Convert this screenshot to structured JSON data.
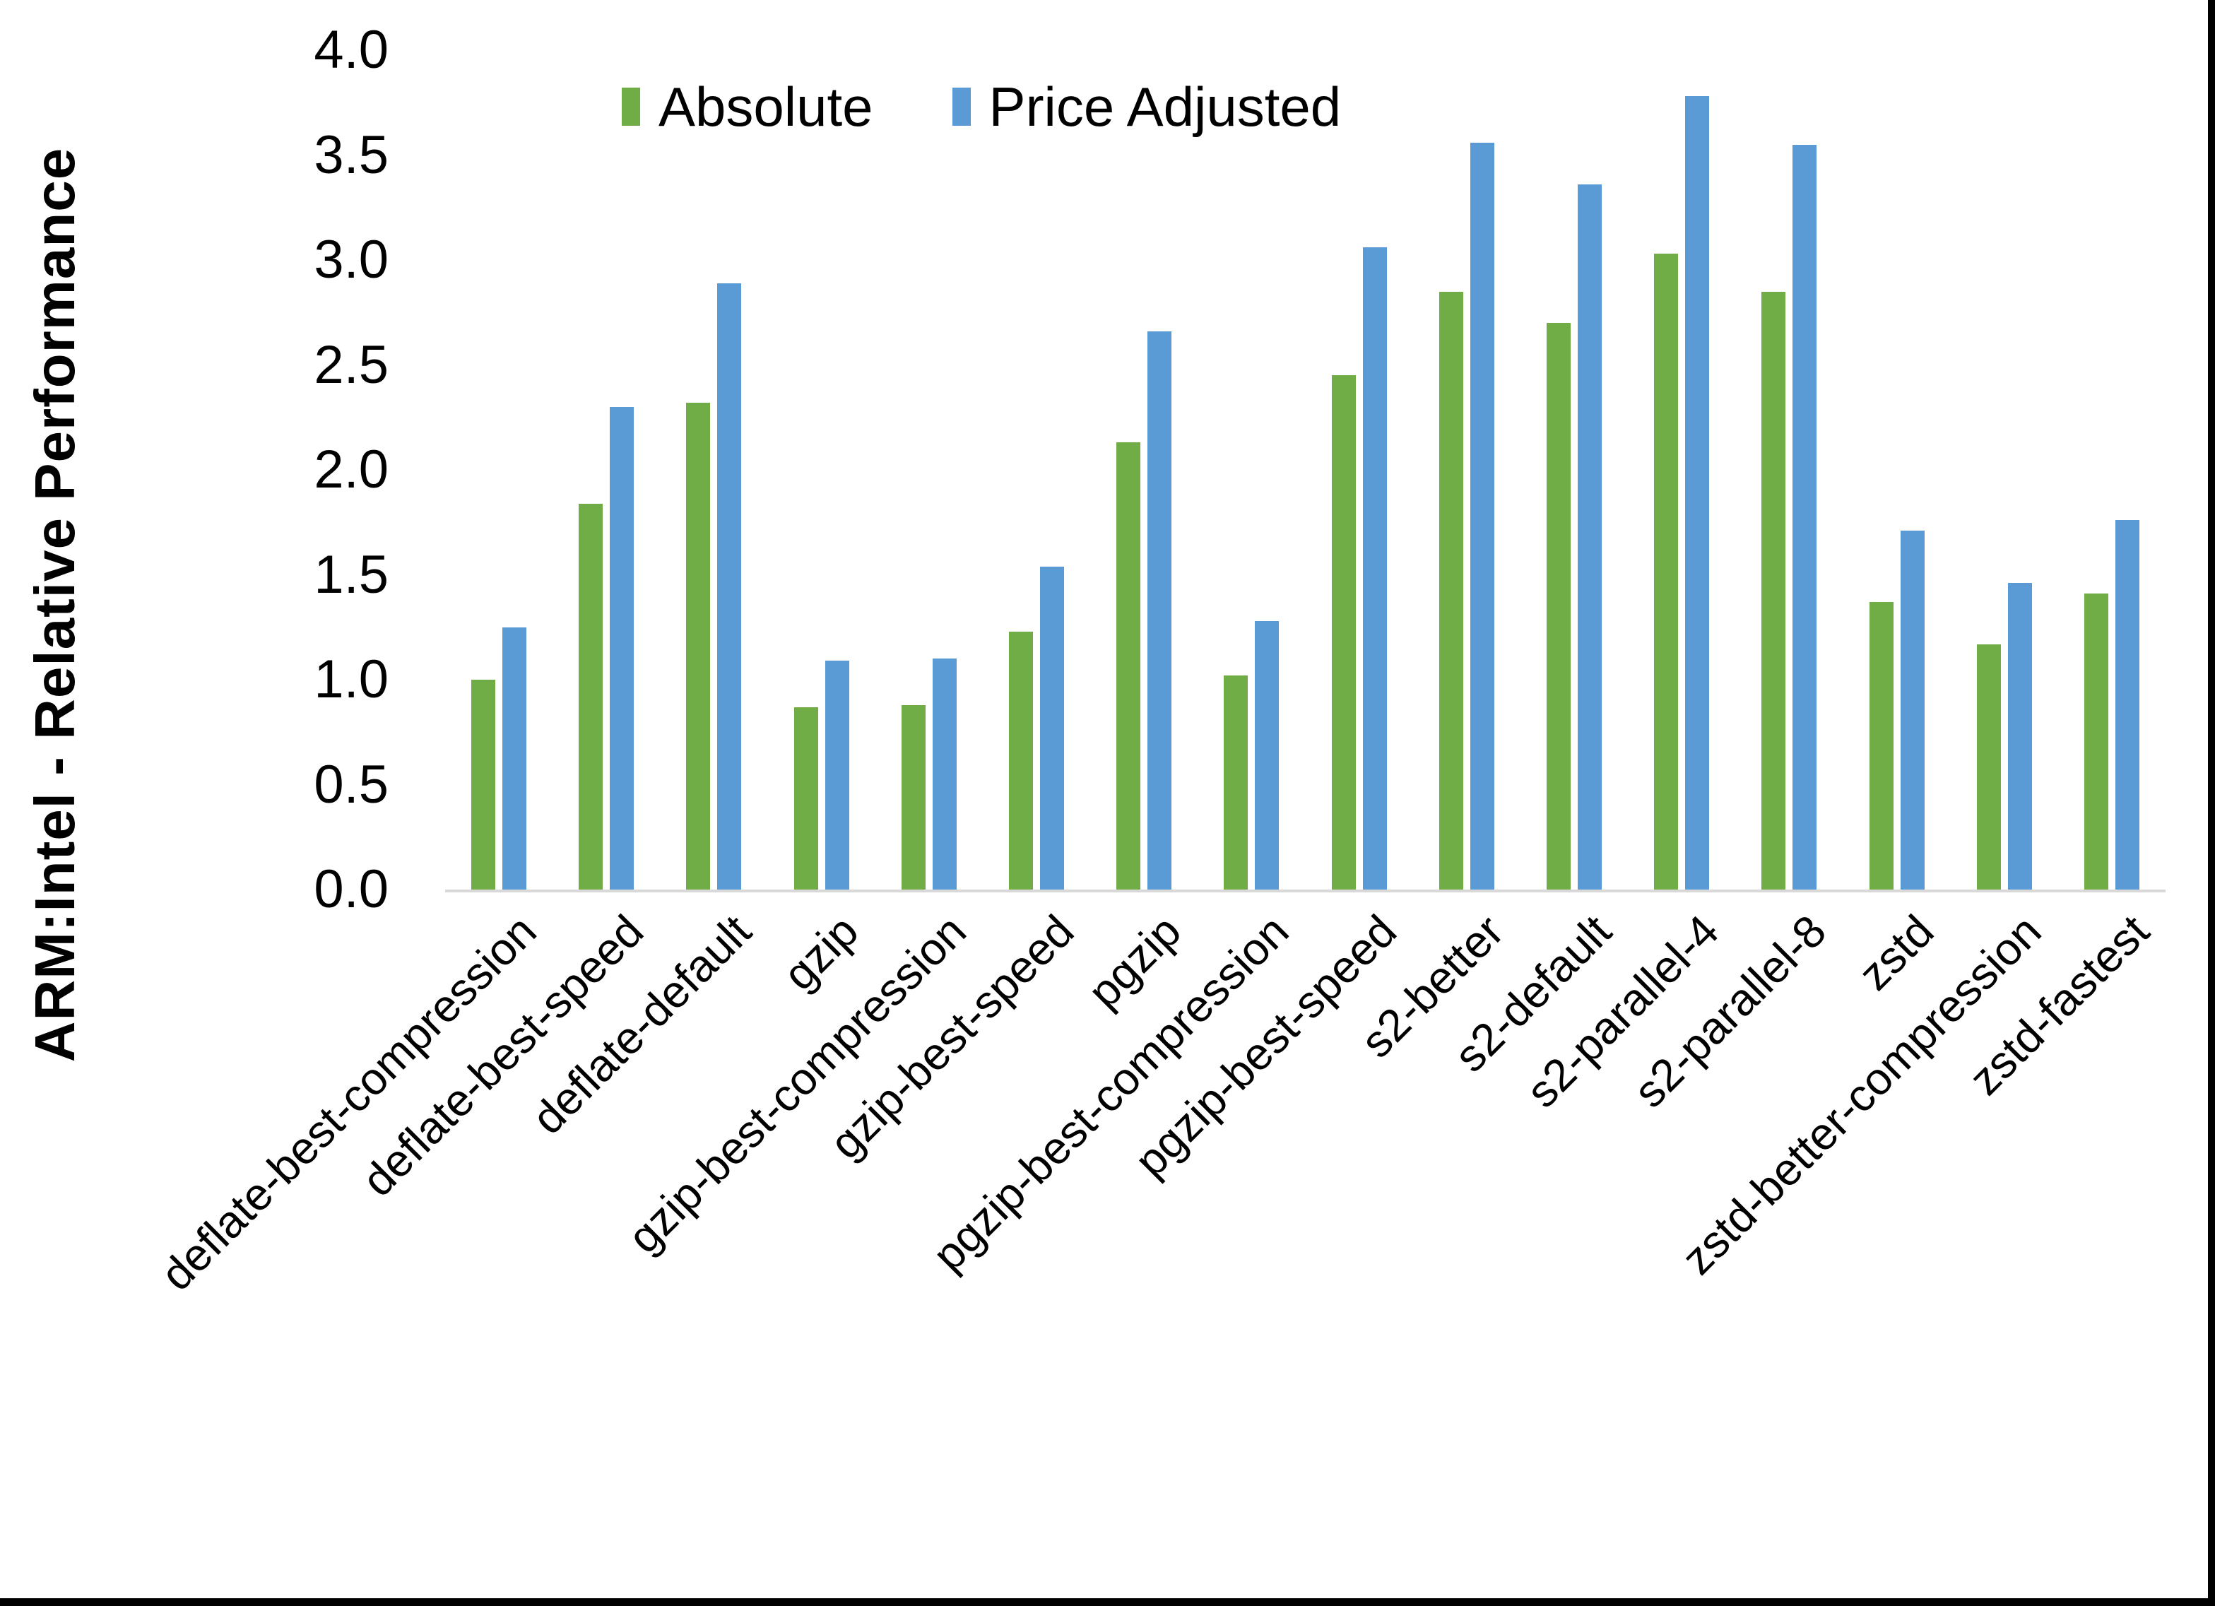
{
  "chart": {
    "y_axis_title": "ARM:Intel - Relative Performance"
  },
  "colors": {
    "absolute_series": "#70AD47",
    "price_adjusted_series": "#5B9BD5",
    "axis_line": "#D9D9D9",
    "text": "#000000",
    "background": "#FFFFFF",
    "frame_border": "#000000"
  },
  "chart_data": {
    "type": "bar",
    "title": "",
    "xlabel": "",
    "ylabel": "ARM:Intel - Relative Performance",
    "ylim": [
      0,
      4
    ],
    "ytick_step": 0.5,
    "ytick_labels": [
      "0.0",
      "0.5",
      "1.0",
      "1.5",
      "2.0",
      "2.5",
      "3.0",
      "3.5",
      "4.0"
    ],
    "grid": false,
    "legend_position": "top-center",
    "categories": [
      "deflate-best-compression",
      "deflate-best-speed",
      "deflate-default",
      "gzip",
      "gzip-best-compression",
      "gzip-best-speed",
      "pgzip",
      "pgzip-best-compression",
      "pgzip-best-speed",
      "s2-better",
      "s2-default",
      "s2-parallel-4",
      "s2-parallel-8",
      "zstd",
      "zstd-better-compression",
      "zstd-fastest"
    ],
    "series": [
      {
        "name": "Absolute",
        "color": "#70AD47",
        "values": [
          1.0,
          1.84,
          2.32,
          0.87,
          0.88,
          1.23,
          2.13,
          1.02,
          2.45,
          2.85,
          2.7,
          3.03,
          2.85,
          1.37,
          1.17,
          1.41
        ]
      },
      {
        "name": "Price Adjusted",
        "color": "#5B9BD5",
        "values": [
          1.25,
          2.3,
          2.89,
          1.09,
          1.1,
          1.54,
          2.66,
          1.28,
          3.06,
          3.56,
          3.36,
          3.78,
          3.55,
          1.71,
          1.46,
          1.76
        ]
      }
    ]
  }
}
